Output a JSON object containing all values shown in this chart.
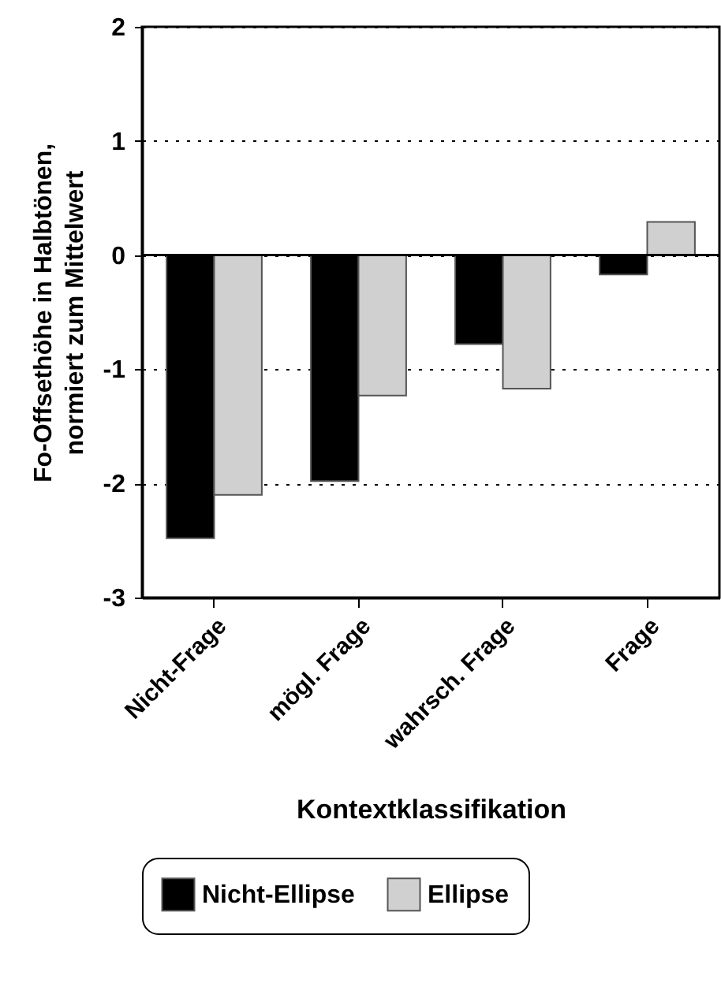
{
  "chart_data": {
    "type": "bar",
    "categories": [
      "Nicht-Frage",
      "mögl. Frage",
      "wahrsch. Frage",
      "Frage"
    ],
    "series": [
      {
        "name": "Nicht-Ellipse",
        "color": "#000000",
        "values": [
          -2.48,
          -1.98,
          -0.78,
          -0.17
        ]
      },
      {
        "name": "Ellipse",
        "color": "#d0d0d0",
        "values": [
          -2.1,
          -1.23,
          -1.17,
          0.29
        ]
      }
    ],
    "xlabel": "Kontextklassifikation",
    "ylabel": "Fo-Offsethöhe in Halbtönen,\nnormiert zum Mittelwert",
    "ylim": [
      -3,
      2
    ],
    "yticks": [
      -3,
      -2,
      -1,
      0,
      1,
      2
    ],
    "grid": "y",
    "legend": "bottom",
    "ref_lines": [
      {
        "axis": "y",
        "value": 0,
        "color": "#000000",
        "line_style": "solid"
      }
    ]
  }
}
